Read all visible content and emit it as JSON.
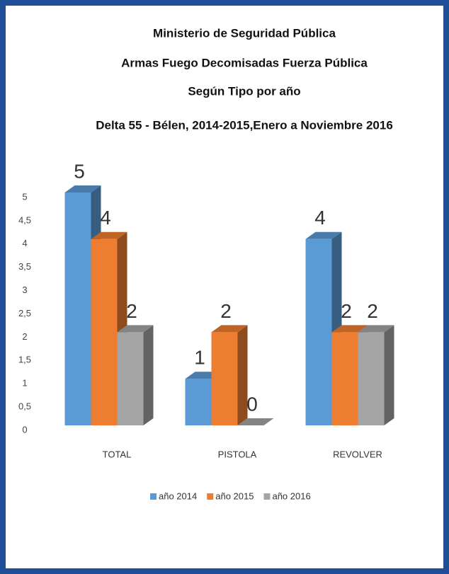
{
  "chart_data": {
    "type": "bar3d",
    "title": [
      "Ministerio de Seguridad Pública",
      "Armas Fuego Decomisadas  Fuerza Pública",
      "Según Tipo por año",
      "Delta 55 - Bélen, 2014-2015,Enero a Noviembre 2016"
    ],
    "categories": [
      "TOTAL",
      "PISTOLA",
      "REVOLVER"
    ],
    "series": [
      {
        "name": "año 2014",
        "color": "#5b9bd5",
        "values": [
          5,
          1,
          4
        ]
      },
      {
        "name": "año 2015",
        "color": "#ed7d31",
        "values": [
          4,
          2,
          2
        ]
      },
      {
        "name": "año 2016",
        "color": "#a5a5a5",
        "values": [
          2,
          0,
          2
        ]
      }
    ],
    "ylim": [
      0,
      5
    ],
    "yticks": [
      0,
      {
        "value": 0.5,
        "label": "0,5"
      },
      1,
      {
        "value": 1.5,
        "label": "1,5"
      },
      2,
      {
        "value": 2.5,
        "label": "2,5"
      },
      3,
      {
        "value": 3.5,
        "label": "3,5"
      },
      4,
      {
        "value": 4.5,
        "label": "4,5"
      },
      5
    ],
    "grid": false,
    "legend": "bottom"
  }
}
